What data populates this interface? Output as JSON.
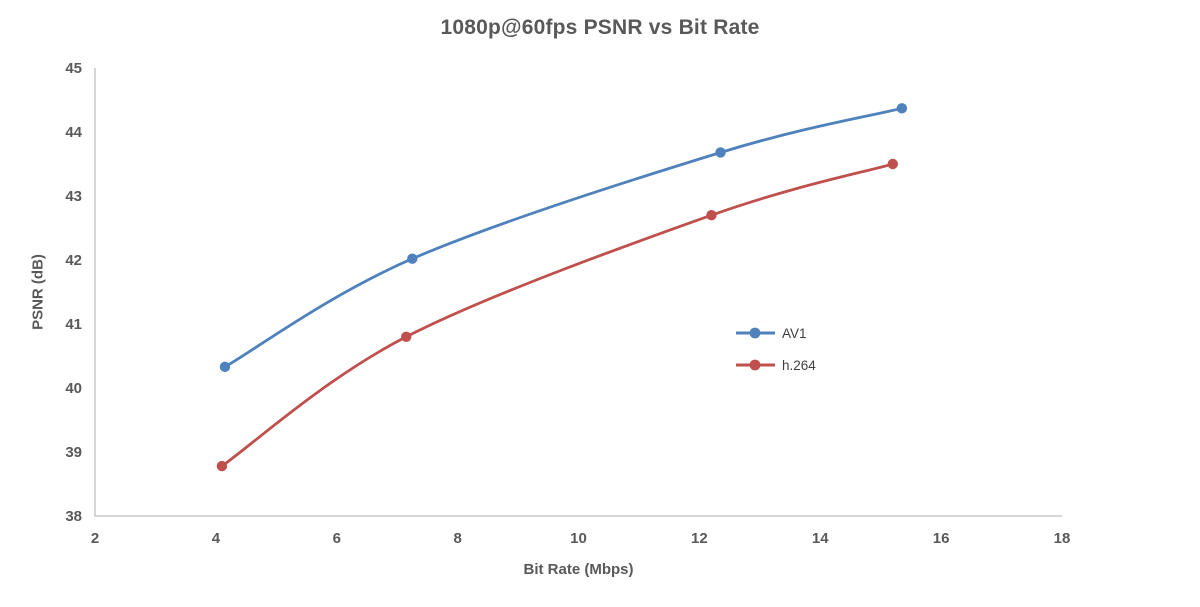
{
  "chart_data": {
    "type": "line",
    "title": "1080p@60fps PSNR vs Bit Rate",
    "xlabel": "Bit Rate (Mbps)",
    "ylabel": "PSNR (dB)",
    "xlim": [
      2,
      18
    ],
    "ylim": [
      38,
      45
    ],
    "x_ticks": [
      2,
      4,
      6,
      8,
      10,
      12,
      14,
      16,
      18
    ],
    "y_ticks": [
      38,
      39,
      40,
      41,
      42,
      43,
      44,
      45
    ],
    "grid": false,
    "smooth": true,
    "legend_position": "center-right",
    "series": [
      {
        "name": "AV1",
        "color": "#4F81BD",
        "points": [
          {
            "x": 4.15,
            "y": 40.33
          },
          {
            "x": 7.25,
            "y": 42.02
          },
          {
            "x": 12.35,
            "y": 43.68
          },
          {
            "x": 15.35,
            "y": 44.37
          }
        ]
      },
      {
        "name": "h.264",
        "color": "#C0504D",
        "points": [
          {
            "x": 4.1,
            "y": 38.78
          },
          {
            "x": 7.15,
            "y": 40.8
          },
          {
            "x": 12.2,
            "y": 42.7
          },
          {
            "x": 15.2,
            "y": 43.5
          }
        ]
      }
    ],
    "colors": {
      "text": "#595959",
      "axis_line": "#BFBFBF",
      "legend_text": "#404040",
      "background": "#FFFFFF"
    }
  }
}
